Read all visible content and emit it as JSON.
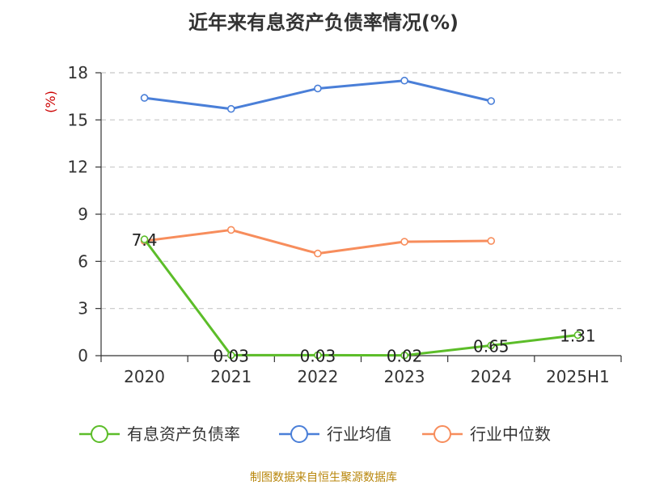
{
  "chart_data": {
    "type": "line",
    "title": "近年来有息资产负债率情况(%)",
    "unit_label": "(%)",
    "categories": [
      "2020",
      "2021",
      "2022",
      "2023",
      "2024",
      "2025H1"
    ],
    "ylim": [
      0,
      18
    ],
    "yticks": [
      0,
      3,
      6,
      9,
      12,
      15,
      18
    ],
    "grid": true,
    "legend_position": "bottom",
    "series": [
      {
        "name": "有息资产负债率",
        "color": "#5cbd29",
        "values": [
          7.4,
          0.03,
          0.03,
          0.02,
          0.65,
          1.31
        ],
        "labels": [
          "7.4",
          "0.03",
          "0.03",
          "0.02",
          "0.65",
          "1.31"
        ]
      },
      {
        "name": "行业均值",
        "color": "#4a7fd8",
        "values": [
          16.4,
          15.7,
          17.0,
          17.5,
          16.2,
          null
        ]
      },
      {
        "name": "行业中位数",
        "color": "#f78d5c",
        "values": [
          7.3,
          8.0,
          6.5,
          7.25,
          7.3,
          null
        ]
      }
    ]
  },
  "source_text": "制图数据来自恒生聚源数据库"
}
